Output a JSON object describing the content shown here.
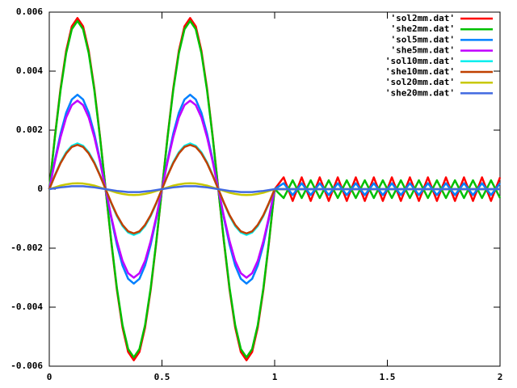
{
  "chart_data": {
    "type": "line",
    "x": [
      0,
      0.025,
      0.05,
      0.075,
      0.1,
      0.125,
      0.15,
      0.175,
      0.2,
      0.225,
      0.25,
      0.275,
      0.3,
      0.325,
      0.35,
      0.375,
      0.4,
      0.425,
      0.45,
      0.475,
      0.5,
      0.525,
      0.55,
      0.575,
      0.6,
      0.625,
      0.65,
      0.675,
      0.7,
      0.725,
      0.75,
      0.775,
      0.8,
      0.825,
      0.85,
      0.875,
      0.9,
      0.925,
      0.95,
      0.975,
      1,
      1.04,
      1.08,
      1.12,
      1.16,
      1.2,
      1.24,
      1.28,
      1.32,
      1.36,
      1.4,
      1.44,
      1.48,
      1.52,
      1.56,
      1.6,
      1.64,
      1.68,
      1.72,
      1.76,
      1.8,
      1.84,
      1.88,
      1.92,
      1.96,
      2
    ],
    "xlim": [
      0,
      2
    ],
    "xticks": [
      0,
      0.5,
      1,
      1.5,
      2
    ],
    "ylim": [
      -0.006,
      0.006
    ],
    "yticks": [
      -0.006,
      -0.004,
      -0.002,
      0,
      0.002,
      0.004,
      0.006
    ],
    "legend": "top-right",
    "series": [
      {
        "name": "'sol2mm.dat'",
        "color": "#ff0000",
        "values": [
          0,
          0.00179,
          0.00341,
          0.00469,
          0.00552,
          0.0058,
          0.00552,
          0.00469,
          0.00341,
          0.00179,
          0,
          -0.00179,
          -0.00341,
          -0.00469,
          -0.00552,
          -0.0058,
          -0.00552,
          -0.00469,
          -0.00341,
          -0.00179,
          0,
          0.00179,
          0.00341,
          0.00469,
          0.00552,
          0.0058,
          0.00552,
          0.00469,
          0.00341,
          0.00179,
          0,
          -0.00179,
          -0.00341,
          -0.00469,
          -0.00552,
          -0.0058,
          -0.00552,
          -0.00469,
          -0.00341,
          -0.00179,
          0,
          0.0004,
          -0.0004,
          0.0004,
          -0.0004,
          0.0004,
          -0.0004,
          0.0004,
          -0.0004,
          0.0004,
          -0.0004,
          0.0004,
          -0.0004,
          0.0004,
          -0.0004,
          0.0004,
          -0.0004,
          0.0004,
          -0.0004,
          0.0004,
          -0.0004,
          0.0004,
          -0.0004,
          0.0004,
          -0.0004,
          0.0004
        ]
      },
      {
        "name": "'she2mm.dat'",
        "color": "#00c000",
        "values": [
          0,
          0.00176,
          0.00335,
          0.00461,
          0.00542,
          0.0057,
          0.00542,
          0.00461,
          0.00335,
          0.00176,
          0,
          -0.00176,
          -0.00335,
          -0.00461,
          -0.00542,
          -0.0057,
          -0.00542,
          -0.00461,
          -0.00335,
          -0.00176,
          0,
          0.00176,
          0.00335,
          0.00461,
          0.00542,
          0.0057,
          0.00542,
          0.00461,
          0.00335,
          0.00176,
          0,
          -0.00176,
          -0.00335,
          -0.00461,
          -0.00542,
          -0.0057,
          -0.00542,
          -0.00461,
          -0.00335,
          -0.00176,
          0,
          -0.0003,
          0.0003,
          -0.0003,
          0.0003,
          -0.0003,
          0.0003,
          -0.0003,
          0.0003,
          -0.0003,
          0.0003,
          -0.0003,
          0.0003,
          -0.0003,
          0.0003,
          -0.0003,
          0.0003,
          -0.0003,
          0.0003,
          -0.0003,
          0.0003,
          -0.0003,
          0.0003,
          -0.0003,
          0.0003,
          -0.0003
        ]
      },
      {
        "name": "'sol5mm.dat'",
        "color": "#0080ff",
        "values": [
          0,
          0.00099,
          0.00188,
          0.00259,
          0.00304,
          0.0032,
          0.00304,
          0.00259,
          0.00188,
          0.00099,
          0,
          -0.00099,
          -0.00188,
          -0.00259,
          -0.00304,
          -0.0032,
          -0.00304,
          -0.00259,
          -0.00188,
          -0.00099,
          0,
          0.00099,
          0.00188,
          0.00259,
          0.00304,
          0.0032,
          0.00304,
          0.00259,
          0.00188,
          0.00099,
          0,
          -0.00099,
          -0.00188,
          -0.00259,
          -0.00304,
          -0.0032,
          -0.00304,
          -0.00259,
          -0.00188,
          -0.00099,
          0,
          0.0002,
          -0.0002,
          0.0002,
          -0.0002,
          0.0002,
          -0.0002,
          0.0002,
          -0.0002,
          0.0002,
          -0.0002,
          0.0002,
          -0.0002,
          0.0002,
          -0.0002,
          0.0002,
          -0.0002,
          0.0002,
          -0.0002,
          0.0002,
          -0.0002,
          0.0002,
          -0.0002,
          0.0002,
          -0.0002,
          0.0002
        ]
      },
      {
        "name": "'she5mm.dat'",
        "color": "#c000ff",
        "values": [
          0,
          0.00093,
          0.00176,
          0.00243,
          0.00285,
          0.003,
          0.00285,
          0.00243,
          0.00176,
          0.00093,
          0,
          -0.00093,
          -0.00176,
          -0.00243,
          -0.00285,
          -0.003,
          -0.00285,
          -0.00243,
          -0.00176,
          -0.00093,
          0,
          0.00093,
          0.00176,
          0.00243,
          0.00285,
          0.003,
          0.00285,
          0.00243,
          0.00176,
          0.00093,
          0,
          -0.00093,
          -0.00176,
          -0.00243,
          -0.00285,
          -0.003,
          -0.00285,
          -0.00243,
          -0.00176,
          -0.00093,
          0,
          0,
          0,
          0,
          0,
          0,
          0,
          0,
          0,
          0,
          0,
          0,
          0,
          0,
          0,
          0,
          0,
          0,
          0,
          0,
          0,
          0,
          0,
          0,
          0,
          0
        ]
      },
      {
        "name": "'sol10mm.dat'",
        "color": "#00eeee",
        "values": [
          0,
          0.00048,
          0.00091,
          0.00125,
          0.00147,
          0.00155,
          0.00147,
          0.00125,
          0.00091,
          0.00048,
          0,
          -0.00048,
          -0.00091,
          -0.00125,
          -0.00147,
          -0.00155,
          -0.00147,
          -0.00125,
          -0.00091,
          -0.00048,
          0,
          0.00048,
          0.00091,
          0.00125,
          0.00147,
          0.00155,
          0.00147,
          0.00125,
          0.00091,
          0.00048,
          0,
          -0.00048,
          -0.00091,
          -0.00125,
          -0.00147,
          -0.00155,
          -0.00147,
          -0.00125,
          -0.00091,
          -0.00048,
          0,
          0,
          0,
          0,
          0,
          0,
          0,
          0,
          0,
          0,
          0,
          0,
          0,
          0,
          0,
          0,
          0,
          0,
          0,
          0,
          0,
          0,
          0,
          0,
          0,
          0
        ]
      },
      {
        "name": "'she10mm.dat'",
        "color": "#c04000",
        "values": [
          0,
          0.00046,
          0.00088,
          0.00121,
          0.00143,
          0.0015,
          0.00143,
          0.00121,
          0.00088,
          0.00046,
          0,
          -0.00046,
          -0.00088,
          -0.00121,
          -0.00143,
          -0.0015,
          -0.00143,
          -0.00121,
          -0.00088,
          -0.00046,
          0,
          0.00046,
          0.00088,
          0.00121,
          0.00143,
          0.0015,
          0.00143,
          0.00121,
          0.00088,
          0.00046,
          0,
          -0.00046,
          -0.00088,
          -0.00121,
          -0.00143,
          -0.0015,
          -0.00143,
          -0.00121,
          -0.00088,
          -0.00046,
          0,
          0,
          0,
          0,
          0,
          0,
          0,
          0,
          0,
          0,
          0,
          0,
          0,
          0,
          0,
          0,
          0,
          0,
          0,
          0,
          0,
          0,
          0,
          0,
          0,
          0
        ]
      },
      {
        "name": "'sol20mm.dat'",
        "color": "#c8c800",
        "values": [
          0,
          6e-05,
          0.00012,
          0.00016,
          0.00019,
          0.0002,
          0.00019,
          0.00016,
          0.00012,
          6e-05,
          0,
          -6e-05,
          -0.00012,
          -0.00016,
          -0.00019,
          -0.0002,
          -0.00019,
          -0.00016,
          -0.00012,
          -6e-05,
          0,
          6e-05,
          0.00012,
          0.00016,
          0.00019,
          0.0002,
          0.00019,
          0.00016,
          0.00012,
          6e-05,
          0,
          -6e-05,
          -0.00012,
          -0.00016,
          -0.00019,
          -0.0002,
          -0.00019,
          -0.00016,
          -0.00012,
          -6e-05,
          0,
          0,
          0,
          0,
          0,
          0,
          0,
          0,
          0,
          0,
          0,
          0,
          0,
          0,
          0,
          0,
          0,
          0,
          0,
          0,
          0,
          0,
          0,
          0,
          0,
          0
        ]
      },
      {
        "name": "'she20mm.dat'",
        "color": "#4169e1",
        "values": [
          0,
          3e-05,
          6e-05,
          8e-05,
          0.0001,
          0.0001,
          0.0001,
          8e-05,
          6e-05,
          3e-05,
          0,
          -3e-05,
          -6e-05,
          -8e-05,
          -0.0001,
          -0.0001,
          -0.0001,
          -8e-05,
          -6e-05,
          -3e-05,
          0,
          3e-05,
          6e-05,
          8e-05,
          0.0001,
          0.0001,
          0.0001,
          8e-05,
          6e-05,
          3e-05,
          0,
          -3e-05,
          -6e-05,
          -8e-05,
          -0.0001,
          -0.0001,
          -0.0001,
          -8e-05,
          -6e-05,
          -3e-05,
          0,
          0,
          0,
          0,
          0,
          0,
          0,
          0,
          0,
          0,
          0,
          0,
          0,
          0,
          0,
          0,
          0,
          0,
          0,
          0,
          0,
          0,
          0,
          0,
          0,
          0
        ]
      }
    ]
  }
}
